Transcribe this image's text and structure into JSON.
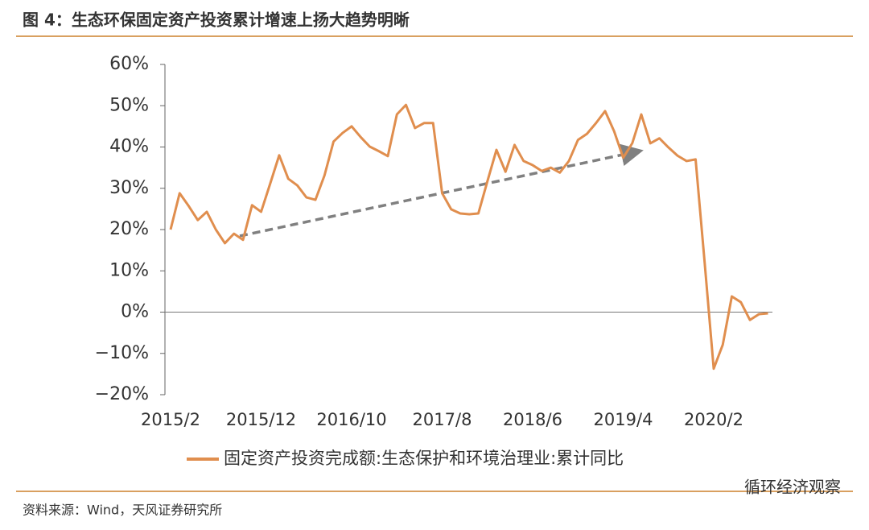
{
  "chart_data": {
    "type": "line",
    "title": "图 4：生态环保固定资产投资累计增速上扬大趋势明晰",
    "source": "资料来源：Wind，天风证券研究所",
    "watermark": "循环经济观察",
    "categories": [
      "2015/2",
      null,
      null,
      null,
      null,
      null,
      null,
      null,
      null,
      null,
      "2015/12",
      null,
      null,
      null,
      null,
      null,
      null,
      null,
      null,
      null,
      "2016/10",
      null,
      null,
      null,
      null,
      null,
      null,
      null,
      null,
      null,
      "2017/8",
      null,
      null,
      null,
      null,
      null,
      null,
      null,
      null,
      null,
      "2018/6",
      null,
      null,
      null,
      null,
      null,
      null,
      null,
      null,
      null,
      "2019/4",
      null,
      null,
      null,
      null,
      null,
      null,
      null,
      null,
      null,
      "2020/2",
      null,
      null,
      null,
      null,
      null,
      null
    ],
    "series": [
      {
        "name": "固定资产投资完成额:生态保护和环境治理业:累计同比",
        "color": "#e08e4e",
        "values": [
          20,
          28.8,
          25.7,
          22.3,
          24.3,
          20,
          16.7,
          19,
          17.5,
          25.9,
          24.3,
          31.1,
          38,
          32.3,
          30.7,
          27.8,
          27.2,
          33.1,
          41.3,
          43.4,
          45,
          42.4,
          40.1,
          39,
          37.8,
          47.9,
          50.2,
          44.6,
          45.8,
          45.8,
          28.8,
          24.9,
          23.9,
          23.7,
          23.9,
          31.7,
          39.3,
          34,
          40.5,
          36.6,
          35.6,
          34.2,
          35,
          33.8,
          36.6,
          41.7,
          43.2,
          45.8,
          48.7,
          43.8,
          37.4,
          40.9,
          47.9,
          40.9,
          42.1,
          39.9,
          37.9,
          36.6,
          37,
          12,
          -13.7,
          -7.9,
          3.8,
          2.4,
          -1.9,
          -0.5,
          -0.3
        ]
      }
    ],
    "ylim": [
      -20,
      60
    ],
    "yticks": [
      {
        "value": -20,
        "label": "−20%"
      },
      {
        "value": -10,
        "label": "−10%"
      },
      {
        "value": 0,
        "label": "0%"
      },
      {
        "value": 10,
        "label": "10%"
      },
      {
        "value": 20,
        "label": "20%"
      },
      {
        "value": 30,
        "label": "30%"
      },
      {
        "value": 40,
        "label": "40%"
      },
      {
        "value": 50,
        "label": "50%"
      },
      {
        "value": 60,
        "label": "60%"
      }
    ],
    "legend": "bottom"
  }
}
